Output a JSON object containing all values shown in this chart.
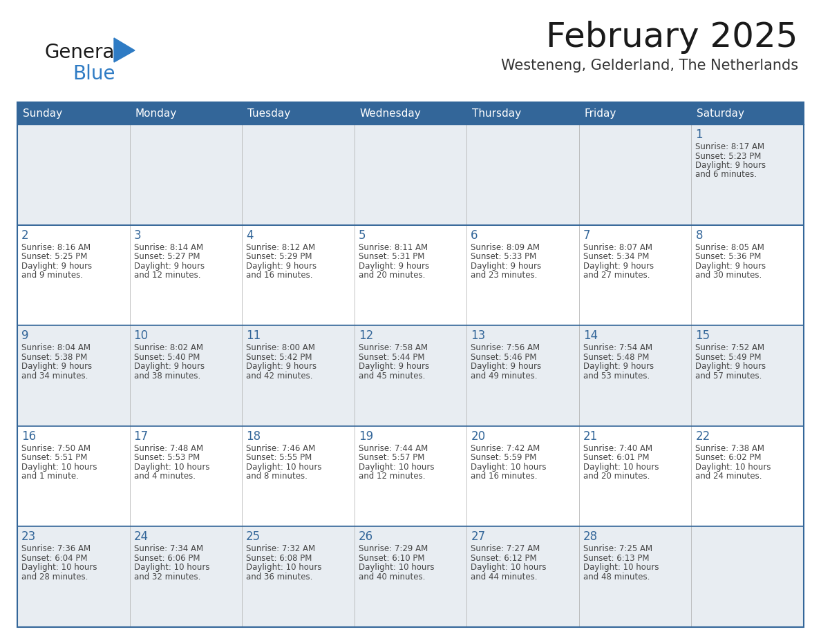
{
  "title": "February 2025",
  "subtitle": "Westeneng, Gelderland, The Netherlands",
  "days_of_week": [
    "Sunday",
    "Monday",
    "Tuesday",
    "Wednesday",
    "Thursday",
    "Friday",
    "Saturday"
  ],
  "header_bg": "#336699",
  "header_text": "#ffffff",
  "cell_bg_gray": "#e8edf2",
  "cell_bg_white": "#ffffff",
  "border_color": "#336699",
  "day_number_color": "#336699",
  "text_color": "#444444",
  "title_color": "#1a1a1a",
  "subtitle_color": "#333333",
  "logo_general_color": "#1a1a1a",
  "logo_blue_color": "#2e7bc4",
  "weeks": [
    [
      {
        "day": null,
        "info": ""
      },
      {
        "day": null,
        "info": ""
      },
      {
        "day": null,
        "info": ""
      },
      {
        "day": null,
        "info": ""
      },
      {
        "day": null,
        "info": ""
      },
      {
        "day": null,
        "info": ""
      },
      {
        "day": 1,
        "info": "Sunrise: 8:17 AM\nSunset: 5:23 PM\nDaylight: 9 hours\nand 6 minutes."
      }
    ],
    [
      {
        "day": 2,
        "info": "Sunrise: 8:16 AM\nSunset: 5:25 PM\nDaylight: 9 hours\nand 9 minutes."
      },
      {
        "day": 3,
        "info": "Sunrise: 8:14 AM\nSunset: 5:27 PM\nDaylight: 9 hours\nand 12 minutes."
      },
      {
        "day": 4,
        "info": "Sunrise: 8:12 AM\nSunset: 5:29 PM\nDaylight: 9 hours\nand 16 minutes."
      },
      {
        "day": 5,
        "info": "Sunrise: 8:11 AM\nSunset: 5:31 PM\nDaylight: 9 hours\nand 20 minutes."
      },
      {
        "day": 6,
        "info": "Sunrise: 8:09 AM\nSunset: 5:33 PM\nDaylight: 9 hours\nand 23 minutes."
      },
      {
        "day": 7,
        "info": "Sunrise: 8:07 AM\nSunset: 5:34 PM\nDaylight: 9 hours\nand 27 minutes."
      },
      {
        "day": 8,
        "info": "Sunrise: 8:05 AM\nSunset: 5:36 PM\nDaylight: 9 hours\nand 30 minutes."
      }
    ],
    [
      {
        "day": 9,
        "info": "Sunrise: 8:04 AM\nSunset: 5:38 PM\nDaylight: 9 hours\nand 34 minutes."
      },
      {
        "day": 10,
        "info": "Sunrise: 8:02 AM\nSunset: 5:40 PM\nDaylight: 9 hours\nand 38 minutes."
      },
      {
        "day": 11,
        "info": "Sunrise: 8:00 AM\nSunset: 5:42 PM\nDaylight: 9 hours\nand 42 minutes."
      },
      {
        "day": 12,
        "info": "Sunrise: 7:58 AM\nSunset: 5:44 PM\nDaylight: 9 hours\nand 45 minutes."
      },
      {
        "day": 13,
        "info": "Sunrise: 7:56 AM\nSunset: 5:46 PM\nDaylight: 9 hours\nand 49 minutes."
      },
      {
        "day": 14,
        "info": "Sunrise: 7:54 AM\nSunset: 5:48 PM\nDaylight: 9 hours\nand 53 minutes."
      },
      {
        "day": 15,
        "info": "Sunrise: 7:52 AM\nSunset: 5:49 PM\nDaylight: 9 hours\nand 57 minutes."
      }
    ],
    [
      {
        "day": 16,
        "info": "Sunrise: 7:50 AM\nSunset: 5:51 PM\nDaylight: 10 hours\nand 1 minute."
      },
      {
        "day": 17,
        "info": "Sunrise: 7:48 AM\nSunset: 5:53 PM\nDaylight: 10 hours\nand 4 minutes."
      },
      {
        "day": 18,
        "info": "Sunrise: 7:46 AM\nSunset: 5:55 PM\nDaylight: 10 hours\nand 8 minutes."
      },
      {
        "day": 19,
        "info": "Sunrise: 7:44 AM\nSunset: 5:57 PM\nDaylight: 10 hours\nand 12 minutes."
      },
      {
        "day": 20,
        "info": "Sunrise: 7:42 AM\nSunset: 5:59 PM\nDaylight: 10 hours\nand 16 minutes."
      },
      {
        "day": 21,
        "info": "Sunrise: 7:40 AM\nSunset: 6:01 PM\nDaylight: 10 hours\nand 20 minutes."
      },
      {
        "day": 22,
        "info": "Sunrise: 7:38 AM\nSunset: 6:02 PM\nDaylight: 10 hours\nand 24 minutes."
      }
    ],
    [
      {
        "day": 23,
        "info": "Sunrise: 7:36 AM\nSunset: 6:04 PM\nDaylight: 10 hours\nand 28 minutes."
      },
      {
        "day": 24,
        "info": "Sunrise: 7:34 AM\nSunset: 6:06 PM\nDaylight: 10 hours\nand 32 minutes."
      },
      {
        "day": 25,
        "info": "Sunrise: 7:32 AM\nSunset: 6:08 PM\nDaylight: 10 hours\nand 36 minutes."
      },
      {
        "day": 26,
        "info": "Sunrise: 7:29 AM\nSunset: 6:10 PM\nDaylight: 10 hours\nand 40 minutes."
      },
      {
        "day": 27,
        "info": "Sunrise: 7:27 AM\nSunset: 6:12 PM\nDaylight: 10 hours\nand 44 minutes."
      },
      {
        "day": 28,
        "info": "Sunrise: 7:25 AM\nSunset: 6:13 PM\nDaylight: 10 hours\nand 48 minutes."
      },
      {
        "day": null,
        "info": ""
      }
    ]
  ],
  "row_bg": [
    "#e8edf2",
    "#ffffff",
    "#e8edf2",
    "#ffffff",
    "#e8edf2"
  ]
}
